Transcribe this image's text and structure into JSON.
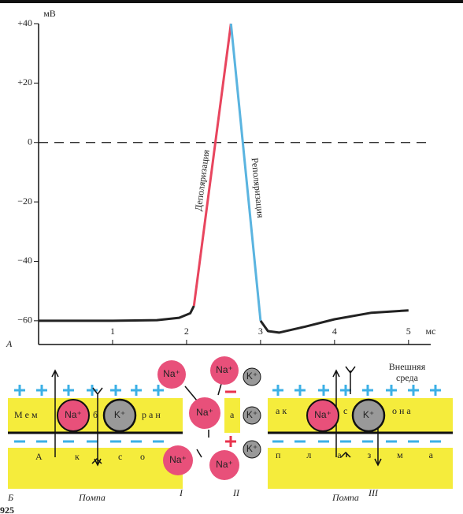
{
  "chart_data": {
    "type": "line",
    "y_unit": "мВ",
    "x_unit": "мс",
    "panel_label": "А",
    "xlim": [
      0,
      5.3
    ],
    "ylim": [
      -68,
      40
    ],
    "xticks": [
      1,
      2,
      3,
      4,
      5
    ],
    "yticks": [
      {
        "value": 40,
        "label": "+40"
      },
      {
        "value": 20,
        "label": "+20"
      },
      0,
      {
        "value": -20,
        "label": "−20"
      },
      {
        "value": -40,
        "label": "−40"
      },
      {
        "value": -60,
        "label": "−60"
      }
    ],
    "zero_line": true,
    "series": [
      {
        "color": "#222",
        "x": [
          0,
          1,
          1.6,
          1.9,
          2.05,
          2.1
        ],
        "values": [
          -60,
          -60,
          -59.8,
          -59,
          -57.5,
          -55
        ]
      },
      {
        "name": "Деполяризация",
        "color": "#e8455e",
        "x": [
          2.1,
          2.6
        ],
        "values": [
          -55,
          40
        ]
      },
      {
        "name": "Реполяризация",
        "color": "#5ab4e0",
        "x": [
          2.6,
          3.0
        ],
        "values": [
          40,
          -60
        ]
      },
      {
        "color": "#222",
        "x": [
          3.0,
          3.1,
          3.25,
          3.6,
          4,
          4.5,
          5
        ],
        "values": [
          -60,
          -63.5,
          -64,
          -62,
          -59.5,
          -57.3,
          -56.5
        ]
      }
    ]
  },
  "diagram": {
    "panel_label": "Б",
    "outer_medium": [
      "Внешняя",
      "среда"
    ],
    "membrane_text": [
      "М е м",
      "б",
      "р а н",
      "а",
      "а к",
      "с",
      "о н а"
    ],
    "axoplasm_text": [
      "А",
      "к",
      "с",
      "о",
      "п л а з м а"
    ],
    "na": "Na⁺",
    "k": "K⁺",
    "pump_left": "Помпа",
    "pump_right": "Помпа",
    "stage_1": "I",
    "stage_2": "II",
    "stage_3": "III",
    "figure_number": "925"
  }
}
